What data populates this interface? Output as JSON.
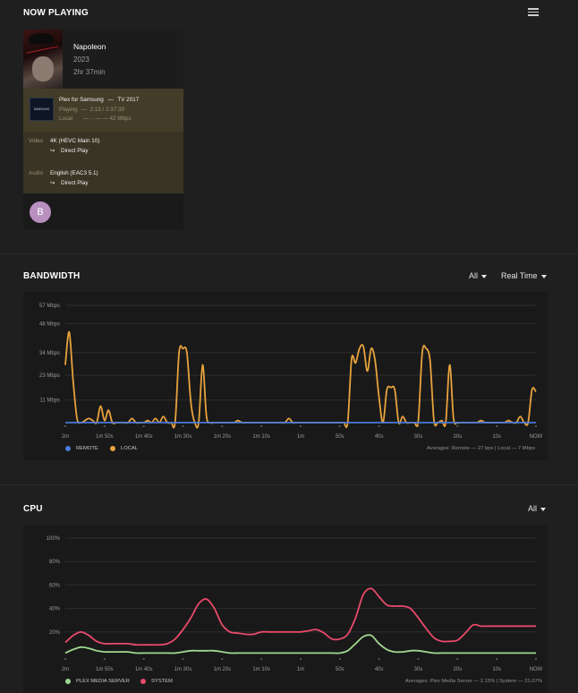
{
  "now_playing": {
    "section_title": "NOW PLAYING",
    "title": "Napoleon",
    "year": "2023",
    "duration": "2hr 37min",
    "device_thumb_label": "SAMSUNG",
    "player_name": "Plex for Samsung",
    "player_sep": "—",
    "player_model": "TV 2017",
    "playing_label": "Playing",
    "playing_sep": "—",
    "playing_progress": "2:13 / 2:37:39",
    "location_label": "Local",
    "location_detail": "—  - .— —  42 Mbps",
    "video_label": "Video",
    "video_value": "4K (HEVC Main 10)",
    "video_mode": "Direct Play",
    "audio_label": "Audio",
    "audio_value": "English (EAC3 5.1)",
    "audio_mode": "Direct Play",
    "arrow_glyph": "↪",
    "user_initial": "B"
  },
  "bandwidth": {
    "section_title": "BANDWIDTH",
    "filter_all": "All",
    "filter_time": "Real Time",
    "legend_remote": "REMOTE",
    "legend_local": "LOCAL",
    "averages": "Averages: Remote — 27 bps | Local — 7 Mbps"
  },
  "cpu": {
    "section_title": "CPU",
    "filter_all": "All",
    "legend_pms": "PLEX MEDIA SERVER",
    "legend_system": "SYSTEM",
    "averages": "Averages: Plex Media Server — 2.15% | System — 21.07%"
  },
  "colors": {
    "local": "#e8a33d",
    "remote": "#4a7bd8",
    "pms": "#9fd88f",
    "system": "#e84a6a"
  },
  "chart_data": [
    {
      "type": "line",
      "name": "bandwidth",
      "ylim": [
        0,
        57
      ],
      "y_ticks": [
        11,
        23,
        34,
        48,
        57
      ],
      "y_tick_labels": [
        "11 Mbps",
        "23 Mbps",
        "34 Mbps",
        "48 Mbps",
        "57 Mbps"
      ],
      "x_tick_labels": [
        "2m",
        "1m 50s",
        "1m 40s",
        "1m 30s",
        "1m 20s",
        "1m 10s",
        "1m",
        "50s",
        "40s",
        "30s",
        "20s",
        "10s",
        "NOW"
      ],
      "x": [
        0,
        1,
        2,
        3,
        4,
        5,
        6,
        7,
        8,
        9,
        10,
        11,
        12,
        13,
        14,
        15,
        16,
        17,
        18,
        19,
        20,
        21,
        22,
        23,
        24,
        25,
        26,
        27,
        28,
        29,
        30,
        31,
        32,
        33,
        34,
        35,
        36,
        37,
        38,
        39,
        40,
        41,
        42,
        43,
        44,
        45,
        46,
        47,
        48,
        49,
        50,
        51,
        52,
        53,
        54,
        55,
        56,
        57,
        58,
        59,
        60,
        61,
        62,
        63,
        64,
        65,
        66,
        67,
        68,
        69,
        70,
        71,
        72,
        73,
        74,
        75,
        76,
        77,
        78,
        79,
        80,
        81,
        82,
        83,
        84,
        85,
        86,
        87,
        88,
        89,
        90,
        91,
        92,
        93,
        94,
        95,
        96,
        97,
        98,
        99,
        100,
        101,
        102,
        103,
        104,
        105,
        106,
        107,
        108,
        109,
        110,
        111,
        112,
        113,
        114,
        115,
        116,
        117,
        118,
        119,
        120
      ],
      "series": [
        {
          "name": "LOCAL",
          "values": [
            28,
            44,
            20,
            2,
            0,
            1,
            2,
            1,
            0,
            8,
            1,
            6,
            0,
            0,
            0,
            0,
            0,
            2,
            0,
            0,
            0,
            1,
            0,
            2,
            0,
            3,
            0,
            0,
            0,
            34,
            36,
            34,
            10,
            0,
            0,
            28,
            3,
            0,
            0,
            0,
            0,
            0,
            0,
            0,
            1,
            0,
            0,
            0,
            0,
            0,
            0,
            0,
            0,
            0,
            0,
            0,
            0,
            2,
            0,
            0,
            0,
            0,
            0,
            0,
            0,
            0,
            0,
            0,
            0,
            0,
            0,
            0,
            0,
            31,
            29,
            36,
            37,
            25,
            36,
            30,
            12,
            0,
            16,
            17,
            16,
            0,
            3,
            0,
            0,
            0,
            1,
            34,
            36,
            30,
            1,
            0,
            1,
            0,
            28,
            2,
            0,
            0,
            0,
            0,
            0,
            0,
            1,
            0,
            0,
            0,
            0,
            0,
            0,
            1,
            0,
            0,
            3,
            0,
            0,
            16,
            15
          ]
        },
        {
          "name": "REMOTE",
          "values": [
            0,
            0,
            0,
            0,
            0,
            0,
            0,
            0,
            0,
            0,
            0,
            0,
            0,
            0,
            0,
            0,
            0,
            0,
            0,
            0,
            0,
            0,
            0,
            0,
            0,
            0,
            0,
            0,
            0,
            0,
            0,
            0,
            0,
            0,
            0,
            0,
            0,
            0,
            0,
            0,
            0,
            0,
            0,
            0,
            0,
            0,
            0,
            0,
            0,
            0,
            0,
            0,
            0,
            0,
            0,
            0,
            0,
            0,
            0,
            0,
            0,
            0,
            0,
            0,
            0,
            0,
            0,
            0,
            0,
            0,
            0,
            0,
            0,
            0,
            0,
            0,
            0,
            0,
            0,
            0,
            0,
            0,
            0,
            0,
            0,
            0,
            0,
            0,
            0,
            0,
            0,
            0,
            0,
            0,
            0,
            0,
            0,
            0,
            0,
            0,
            0,
            0,
            0,
            0,
            0,
            0,
            0,
            0,
            0,
            0,
            0,
            0,
            0,
            0,
            0,
            0,
            0,
            0,
            0,
            0,
            0
          ]
        }
      ]
    },
    {
      "type": "line",
      "name": "cpu",
      "ylim": [
        0,
        100
      ],
      "y_ticks": [
        20,
        40,
        60,
        80,
        100
      ],
      "y_tick_labels": [
        "20%",
        "40%",
        "60%",
        "80%",
        "100%"
      ],
      "x_tick_labels": [
        "2m",
        "1m 50s",
        "1m 40s",
        "1m 30s",
        "1m 20s",
        "1m 10s",
        "1m",
        "50s",
        "40s",
        "30s",
        "20s",
        "10s",
        "NOW"
      ],
      "x": [
        0,
        1,
        2,
        3,
        4,
        5,
        6,
        7,
        8,
        9,
        10,
        11,
        12,
        13,
        14,
        15,
        16,
        17,
        18,
        19,
        20,
        21,
        22,
        23,
        24,
        25,
        26,
        27,
        28,
        29,
        30,
        31,
        32,
        33,
        34,
        35,
        36,
        37,
        38,
        39,
        40,
        41,
        42,
        43,
        44,
        45,
        46,
        47,
        48,
        49,
        50,
        51,
        52,
        53,
        54,
        55,
        56,
        57,
        58,
        59,
        60
      ],
      "series": [
        {
          "name": "SYSTEM",
          "values": [
            11,
            17,
            20,
            17,
            12,
            10,
            10,
            10,
            10,
            9,
            9,
            9,
            9,
            10,
            14,
            22,
            32,
            44,
            48,
            40,
            26,
            20,
            19,
            18,
            18,
            20,
            20,
            20,
            20,
            20,
            20,
            21,
            22,
            19,
            14,
            14,
            18,
            32,
            52,
            57,
            50,
            43,
            42,
            42,
            40,
            32,
            23,
            15,
            12,
            12,
            13,
            19,
            26,
            25,
            25,
            25,
            25,
            25,
            25,
            25,
            25
          ],
          "note": ""
        },
        {
          "name": "PLEX MEDIA SERVER",
          "values": [
            2,
            5,
            7,
            6,
            4,
            3,
            3,
            3,
            3,
            2,
            2,
            2,
            2,
            2,
            2,
            3,
            4,
            4,
            4,
            4,
            3,
            2,
            2,
            2,
            2,
            2,
            2,
            2,
            2,
            2,
            2,
            2,
            2,
            2,
            2,
            2,
            4,
            10,
            16,
            17,
            10,
            5,
            3,
            3,
            4,
            4,
            3,
            2,
            2,
            2,
            2,
            2,
            2,
            2,
            2,
            2,
            2,
            2,
            2,
            2,
            2
          ]
        }
      ]
    }
  ]
}
